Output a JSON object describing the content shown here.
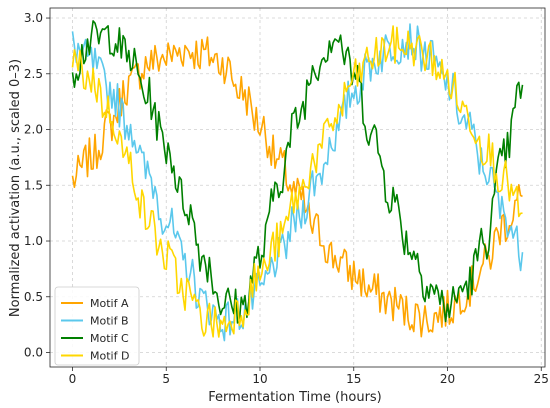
{
  "chart_data": {
    "type": "line",
    "title": "",
    "xlabel": "Fermentation Time (hours)",
    "ylabel": "Normalized activation (a.u., scaled 0–3)",
    "xlim": [
      -1.2,
      25.2
    ],
    "ylim": [
      -0.13,
      3.09
    ],
    "xticks": [
      0,
      5,
      10,
      15,
      20,
      25
    ],
    "yticks": [
      0.0,
      0.5,
      1.0,
      1.5,
      2.0,
      2.5,
      3.0
    ],
    "grid": true,
    "legend_position": "bottom-left",
    "x": [
      0,
      1,
      2,
      3,
      4,
      5,
      6,
      7,
      8,
      9,
      10,
      11,
      12,
      13,
      14,
      15,
      16,
      17,
      18,
      19,
      20,
      21,
      22,
      23,
      24
    ],
    "series": [
      {
        "name": "Motif A",
        "color": "#FFA500",
        "values": [
          1.55,
          1.75,
          2.05,
          2.4,
          2.6,
          2.65,
          2.72,
          2.68,
          2.6,
          2.35,
          2.05,
          1.7,
          1.4,
          1.1,
          0.85,
          0.7,
          0.55,
          0.45,
          0.35,
          0.3,
          0.38,
          0.55,
          0.8,
          1.15,
          1.4
        ]
      },
      {
        "name": "Motif B",
        "color": "#5BC8EC",
        "values": [
          2.75,
          2.6,
          2.35,
          2.05,
          1.6,
          1.2,
          0.8,
          0.45,
          0.28,
          0.35,
          0.55,
          0.85,
          1.2,
          1.55,
          1.95,
          2.35,
          2.6,
          2.75,
          2.8,
          2.65,
          2.4,
          2.05,
          1.65,
          1.25,
          0.9
        ]
      },
      {
        "name": "Motif C",
        "color": "#008000",
        "values": [
          2.55,
          2.8,
          2.85,
          2.65,
          2.3,
          1.85,
          1.35,
          0.85,
          0.45,
          0.4,
          0.85,
          1.55,
          2.1,
          2.6,
          2.85,
          2.5,
          1.95,
          1.4,
          0.95,
          0.6,
          0.4,
          0.6,
          1.0,
          1.75,
          2.4
        ]
      },
      {
        "name": "Motif D",
        "color": "#FFD700",
        "values": [
          2.6,
          2.45,
          2.15,
          1.7,
          1.2,
          0.85,
          0.55,
          0.3,
          0.25,
          0.4,
          0.7,
          1.0,
          1.4,
          1.75,
          2.1,
          2.45,
          2.65,
          2.75,
          2.75,
          2.65,
          2.45,
          2.15,
          1.85,
          1.55,
          1.25
        ]
      }
    ]
  }
}
